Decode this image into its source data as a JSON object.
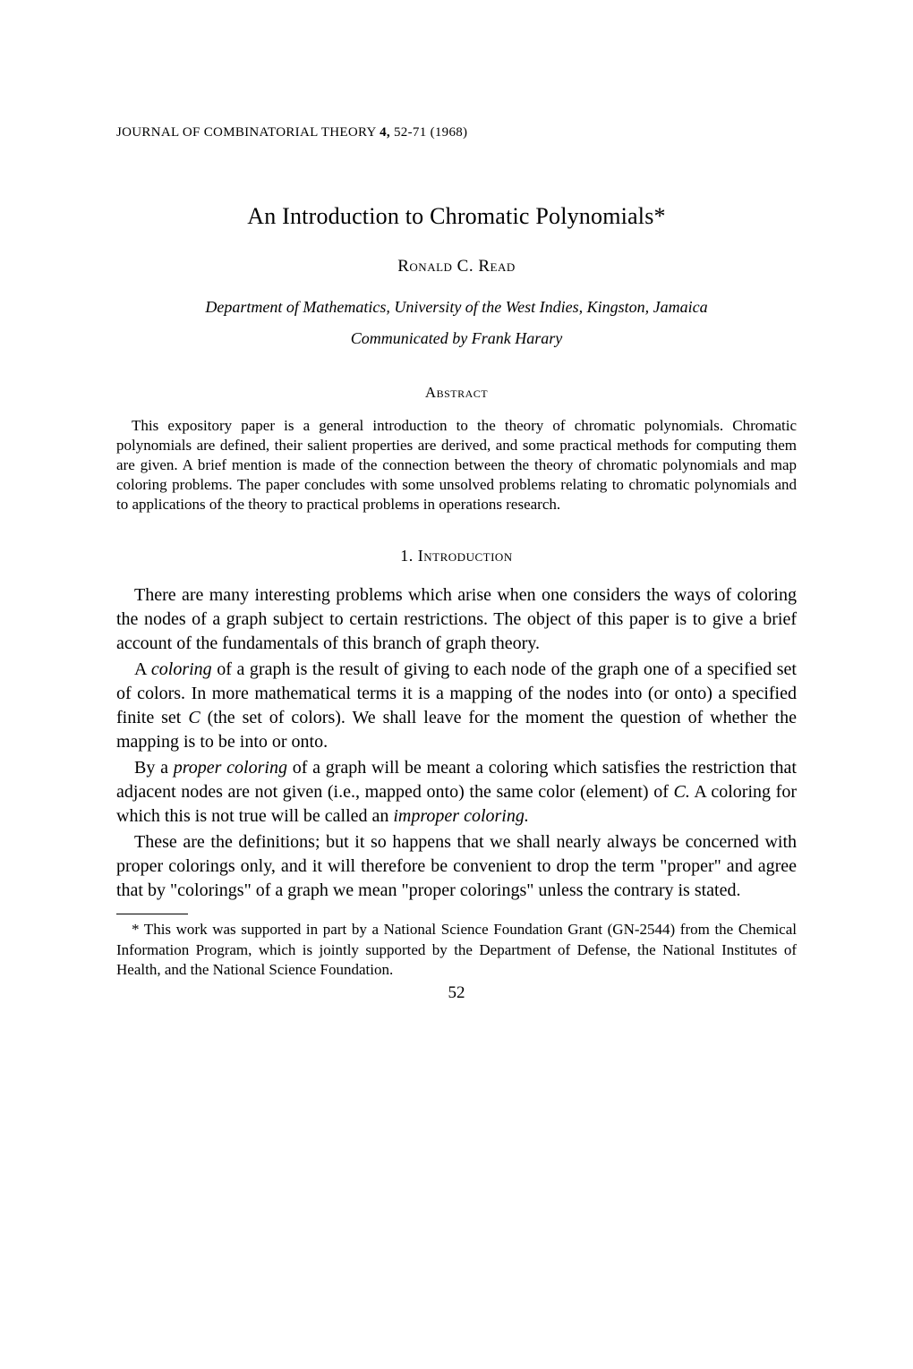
{
  "journal": {
    "name": "JOURNAL OF COMBINATORIAL THEORY",
    "volume": "4,",
    "pages": "52-71",
    "year": "(1968)"
  },
  "title": "An Introduction to Chromatic Polynomials*",
  "author": "Ronald C. Read",
  "affiliation": "Department of Mathematics, University of the West Indies, Kingston, Jamaica",
  "communicated": "Communicated by Frank Harary",
  "abstract_heading": "Abstract",
  "abstract_text": "This expository paper is a general introduction to the theory of chromatic polynomials. Chromatic polynomials are defined, their salient properties are derived, and some practical methods for computing them are given. A brief mention is made of the connection between the theory of chromatic polynomials and map coloring problems. The paper concludes with some unsolved problems relating to chromatic polynomials and to applications of the theory to practical problems in operations research.",
  "section": {
    "number": "1.",
    "title": "Introduction"
  },
  "paragraphs": {
    "p1": "There are many interesting problems which arise when one considers the ways of coloring the nodes of a graph subject to certain restrictions. The object of this paper is to give a brief account of the fundamentals of this branch of graph theory.",
    "p2_a": "A ",
    "p2_i1": "coloring",
    "p2_b": " of a graph is the result of giving to each node of the graph one of a specified set of colors. In more mathematical terms it is a mapping of the nodes into (or onto) a specified finite set ",
    "p2_i2": "C",
    "p2_c": " (the set of colors). We shall leave for the moment the question of whether the mapping is to be into or onto.",
    "p3_a": "By a ",
    "p3_i1": "proper coloring",
    "p3_b": " of a graph will be meant a coloring which satisfies the restriction that adjacent nodes are not given (i.e., mapped onto) the same color (element) of ",
    "p3_i2": "C.",
    "p3_c": " A coloring for which this is not true will be called an ",
    "p3_i3": "improper coloring.",
    "p4": "These are the definitions; but it so happens that we shall nearly always be concerned with proper colorings only, and it will therefore be convenient to drop the term \"proper\" and agree that by \"colorings\" of a graph we mean \"proper colorings\" unless the contrary is stated."
  },
  "footnote": "* This work was supported in part by a National Science Foundation Grant (GN-2544) from the Chemical Information Program, which is jointly supported by the Department of Defense, the National Institutes of Health, and the National Science Foundation.",
  "page_number": "52"
}
